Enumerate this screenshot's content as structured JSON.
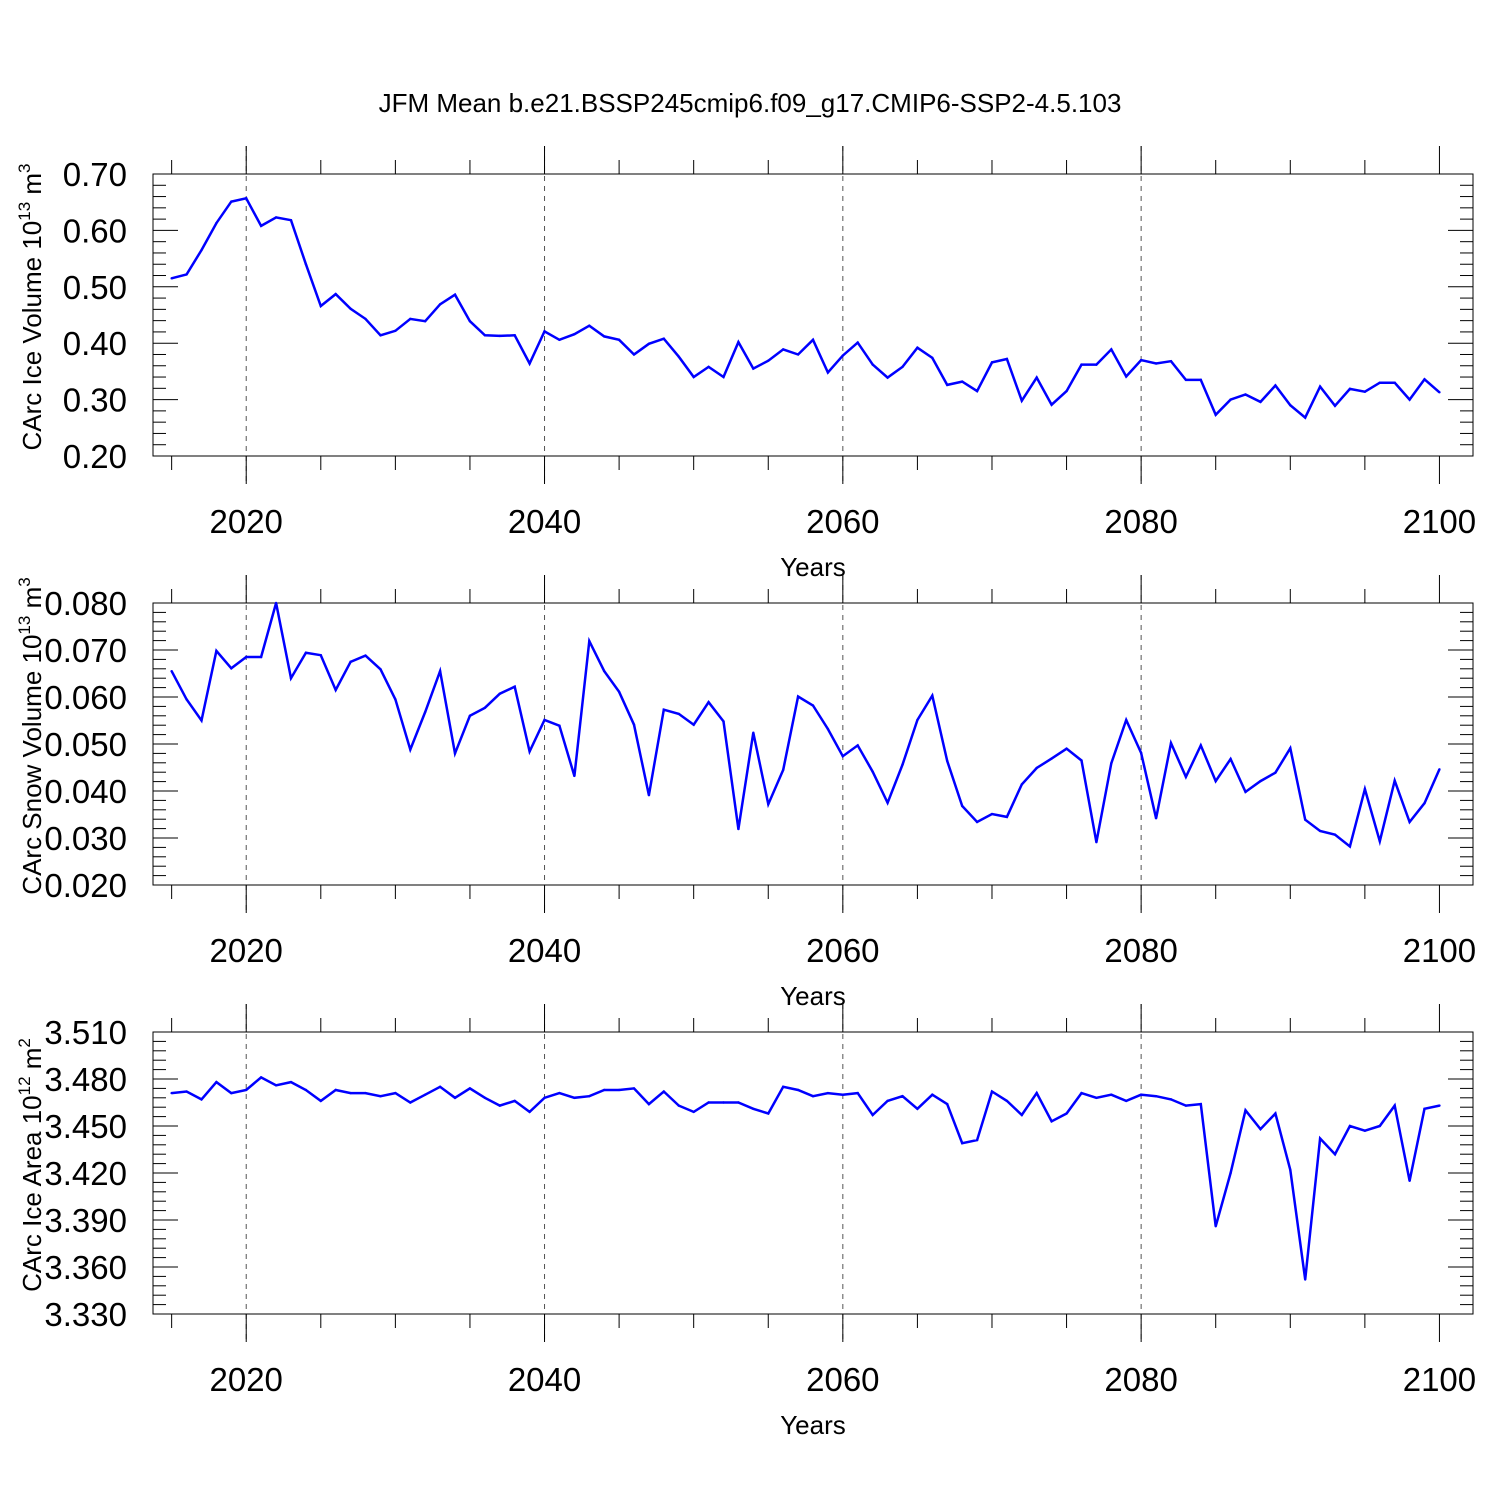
{
  "title": "JFM Mean b.e21.BSSP245cmip6.f09_g17.CMIP6-SSP2-4.5.103",
  "line_color": "#0000ff",
  "chart_data": [
    {
      "type": "line",
      "xlabel": "Years",
      "ylabel": "CArc Ice Volume 10",
      "ylabel_sup": "13",
      "ylabel_unit": "m",
      "ylabel_unit_sup": "3",
      "xlim": [
        2015,
        2100
      ],
      "ylim": [
        0.2,
        0.7
      ],
      "x_ticks": [
        "2020",
        "2040",
        "2060",
        "2080",
        "2100"
      ],
      "y_ticks": [
        "0.20",
        "0.30",
        "0.40",
        "0.50",
        "0.60",
        "0.70"
      ],
      "x": [
        2015,
        2016,
        2017,
        2018,
        2019,
        2020,
        2021,
        2022,
        2023,
        2024,
        2025,
        2026,
        2027,
        2028,
        2029,
        2030,
        2031,
        2032,
        2033,
        2034,
        2035,
        2036,
        2037,
        2038,
        2039,
        2040,
        2041,
        2042,
        2043,
        2044,
        2045,
        2046,
        2047,
        2048,
        2049,
        2050,
        2051,
        2052,
        2053,
        2054,
        2055,
        2056,
        2057,
        2058,
        2059,
        2060,
        2061,
        2062,
        2063,
        2064,
        2065,
        2066,
        2067,
        2068,
        2069,
        2070,
        2071,
        2072,
        2073,
        2074,
        2075,
        2076,
        2077,
        2078,
        2079,
        2080,
        2081,
        2082,
        2083,
        2084,
        2085,
        2086,
        2087,
        2088,
        2089,
        2090,
        2091,
        2092,
        2093,
        2094,
        2095,
        2096,
        2097,
        2098,
        2099,
        2100
      ],
      "values": [
        0.515,
        0.522,
        0.565,
        0.613,
        0.651,
        0.657,
        0.608,
        0.623,
        0.618,
        0.54,
        0.466,
        0.487,
        0.461,
        0.443,
        0.414,
        0.422,
        0.443,
        0.439,
        0.469,
        0.486,
        0.439,
        0.414,
        0.413,
        0.414,
        0.364,
        0.421,
        0.406,
        0.416,
        0.431,
        0.412,
        0.406,
        0.38,
        0.399,
        0.408,
        0.376,
        0.34,
        0.358,
        0.34,
        0.402,
        0.355,
        0.369,
        0.389,
        0.38,
        0.406,
        0.348,
        0.378,
        0.401,
        0.362,
        0.339,
        0.358,
        0.392,
        0.374,
        0.326,
        0.332,
        0.315,
        0.366,
        0.372,
        0.298,
        0.339,
        0.291,
        0.315,
        0.362,
        0.362,
        0.389,
        0.341,
        0.37,
        0.364,
        0.368,
        0.335,
        0.335,
        0.273,
        0.3,
        0.309,
        0.296,
        0.325,
        0.29,
        0.268,
        0.323,
        0.289,
        0.319,
        0.314,
        0.33,
        0.33,
        0.3,
        0.336,
        0.313
      ]
    },
    {
      "type": "line",
      "xlabel": "Years",
      "ylabel": "CArc Snow Volume 10",
      "ylabel_sup": "13",
      "ylabel_unit": "m",
      "ylabel_unit_sup": "3",
      "xlim": [
        2015,
        2100
      ],
      "ylim": [
        0.02,
        0.08
      ],
      "x_ticks": [
        "2020",
        "2040",
        "2060",
        "2080",
        "2100"
      ],
      "y_ticks": [
        "0.020",
        "0.030",
        "0.040",
        "0.050",
        "0.060",
        "0.070",
        "0.080"
      ],
      "x": [
        2015,
        2016,
        2017,
        2018,
        2019,
        2020,
        2021,
        2022,
        2023,
        2024,
        2025,
        2026,
        2027,
        2028,
        2029,
        2030,
        2031,
        2032,
        2033,
        2034,
        2035,
        2036,
        2037,
        2038,
        2039,
        2040,
        2041,
        2042,
        2043,
        2044,
        2045,
        2046,
        2047,
        2048,
        2049,
        2050,
        2051,
        2052,
        2053,
        2054,
        2055,
        2056,
        2057,
        2058,
        2059,
        2060,
        2061,
        2062,
        2063,
        2064,
        2065,
        2066,
        2067,
        2068,
        2069,
        2070,
        2071,
        2072,
        2073,
        2074,
        2075,
        2076,
        2077,
        2078,
        2079,
        2080,
        2081,
        2082,
        2083,
        2084,
        2085,
        2086,
        2087,
        2088,
        2089,
        2090,
        2091,
        2092,
        2093,
        2094,
        2095,
        2096,
        2097,
        2098,
        2099,
        2100
      ],
      "values": [
        0.0655,
        0.0595,
        0.055,
        0.0698,
        0.0661,
        0.0685,
        0.0685,
        0.08,
        0.064,
        0.0694,
        0.0689,
        0.0615,
        0.0675,
        0.0688,
        0.0659,
        0.0595,
        0.0488,
        0.0568,
        0.0655,
        0.048,
        0.056,
        0.0577,
        0.0607,
        0.0622,
        0.0484,
        0.0551,
        0.0539,
        0.0432,
        0.0719,
        0.0655,
        0.0611,
        0.0541,
        0.0391,
        0.0573,
        0.0564,
        0.0541,
        0.0589,
        0.0548,
        0.0319,
        0.0524,
        0.0372,
        0.0445,
        0.0601,
        0.0582,
        0.0532,
        0.0474,
        0.0497,
        0.0441,
        0.0375,
        0.0456,
        0.0551,
        0.0603,
        0.0464,
        0.0368,
        0.0334,
        0.0351,
        0.0345,
        0.0414,
        0.0449,
        0.0469,
        0.049,
        0.0465,
        0.0291,
        0.0459,
        0.0551,
        0.0481,
        0.0342,
        0.0502,
        0.043,
        0.0497,
        0.0421,
        0.0468,
        0.0398,
        0.0421,
        0.0439,
        0.0491,
        0.0339,
        0.0315,
        0.0307,
        0.0282,
        0.0404,
        0.0293,
        0.0422,
        0.0334,
        0.0374,
        0.0446
      ]
    },
    {
      "type": "line",
      "xlabel": "Years",
      "ylabel": "CArc Ice Area 10",
      "ylabel_sup": "12",
      "ylabel_unit": "m",
      "ylabel_unit_sup": "2",
      "xlim": [
        2015,
        2100
      ],
      "ylim": [
        3.33,
        3.51
      ],
      "x_ticks": [
        "2020",
        "2040",
        "2060",
        "2080",
        "2100"
      ],
      "y_ticks": [
        "3.330",
        "3.360",
        "3.390",
        "3.420",
        "3.450",
        "3.480",
        "3.510"
      ],
      "x": [
        2015,
        2016,
        2017,
        2018,
        2019,
        2020,
        2021,
        2022,
        2023,
        2024,
        2025,
        2026,
        2027,
        2028,
        2029,
        2030,
        2031,
        2032,
        2033,
        2034,
        2035,
        2036,
        2037,
        2038,
        2039,
        2040,
        2041,
        2042,
        2043,
        2044,
        2045,
        2046,
        2047,
        2048,
        2049,
        2050,
        2051,
        2052,
        2053,
        2054,
        2055,
        2056,
        2057,
        2058,
        2059,
        2060,
        2061,
        2062,
        2063,
        2064,
        2065,
        2066,
        2067,
        2068,
        2069,
        2070,
        2071,
        2072,
        2073,
        2074,
        2075,
        2076,
        2077,
        2078,
        2079,
        2080,
        2081,
        2082,
        2083,
        2084,
        2085,
        2086,
        2087,
        2088,
        2089,
        2090,
        2091,
        2092,
        2093,
        2094,
        2095,
        2096,
        2097,
        2098,
        2099,
        2100
      ],
      "values": [
        3.471,
        3.472,
        3.467,
        3.478,
        3.471,
        3.473,
        3.481,
        3.476,
        3.478,
        3.473,
        3.466,
        3.473,
        3.471,
        3.471,
        3.469,
        3.471,
        3.465,
        3.47,
        3.475,
        3.468,
        3.474,
        3.468,
        3.463,
        3.466,
        3.459,
        3.468,
        3.471,
        3.468,
        3.469,
        3.473,
        3.473,
        3.474,
        3.464,
        3.472,
        3.463,
        3.459,
        3.465,
        3.465,
        3.465,
        3.461,
        3.458,
        3.475,
        3.473,
        3.469,
        3.471,
        3.47,
        3.471,
        3.457,
        3.466,
        3.469,
        3.461,
        3.47,
        3.464,
        3.439,
        3.441,
        3.472,
        3.466,
        3.457,
        3.471,
        3.453,
        3.458,
        3.471,
        3.468,
        3.47,
        3.466,
        3.47,
        3.469,
        3.467,
        3.463,
        3.464,
        3.386,
        3.42,
        3.46,
        3.448,
        3.458,
        3.422,
        3.352,
        3.442,
        3.432,
        3.45,
        3.447,
        3.45,
        3.463,
        3.415,
        3.461,
        3.463
      ]
    }
  ]
}
